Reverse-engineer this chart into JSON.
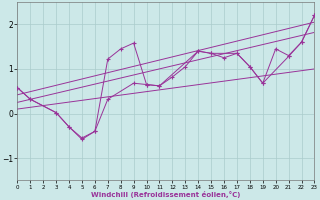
{
  "xlabel": "Windchill (Refroidissement éolien,°C)",
  "bg_color": "#cce8e8",
  "line_color": "#993399",
  "grid_color": "#aacccc",
  "xlim": [
    0,
    23
  ],
  "ylim": [
    -1.5,
    2.5
  ],
  "xticks": [
    0,
    1,
    2,
    3,
    4,
    5,
    6,
    7,
    8,
    9,
    10,
    11,
    12,
    13,
    14,
    15,
    16,
    17,
    18,
    19,
    20,
    21,
    22,
    23
  ],
  "yticks": [
    -1,
    0,
    1,
    2
  ],
  "zigzag1_x": [
    0,
    1,
    3,
    4,
    5,
    6,
    7,
    8,
    9,
    10,
    11,
    12,
    13,
    14,
    15,
    16,
    17,
    18,
    19,
    20,
    21,
    22,
    23
  ],
  "zigzag1_y": [
    0.58,
    0.32,
    0.02,
    -0.3,
    -0.55,
    -0.4,
    1.22,
    1.45,
    1.58,
    0.65,
    0.62,
    0.82,
    1.05,
    1.4,
    1.35,
    1.25,
    1.35,
    1.05,
    0.68,
    1.45,
    1.3,
    1.6,
    2.2
  ],
  "zigzag2_x": [
    0,
    1,
    3,
    4,
    5,
    6,
    7,
    9,
    10,
    11,
    14,
    15,
    17,
    18,
    19,
    21,
    22,
    23
  ],
  "zigzag2_y": [
    0.58,
    0.32,
    0.02,
    -0.3,
    -0.58,
    -0.4,
    0.32,
    0.68,
    0.65,
    0.62,
    1.4,
    1.35,
    1.35,
    1.05,
    0.68,
    1.28,
    1.6,
    2.2
  ],
  "trend1_x": [
    0,
    23
  ],
  "trend1_y": [
    0.42,
    2.05
  ],
  "trend2_x": [
    0,
    23
  ],
  "trend2_y": [
    0.25,
    1.82
  ],
  "trend3_x": [
    0,
    23
  ],
  "trend3_y": [
    0.1,
    1.0
  ]
}
